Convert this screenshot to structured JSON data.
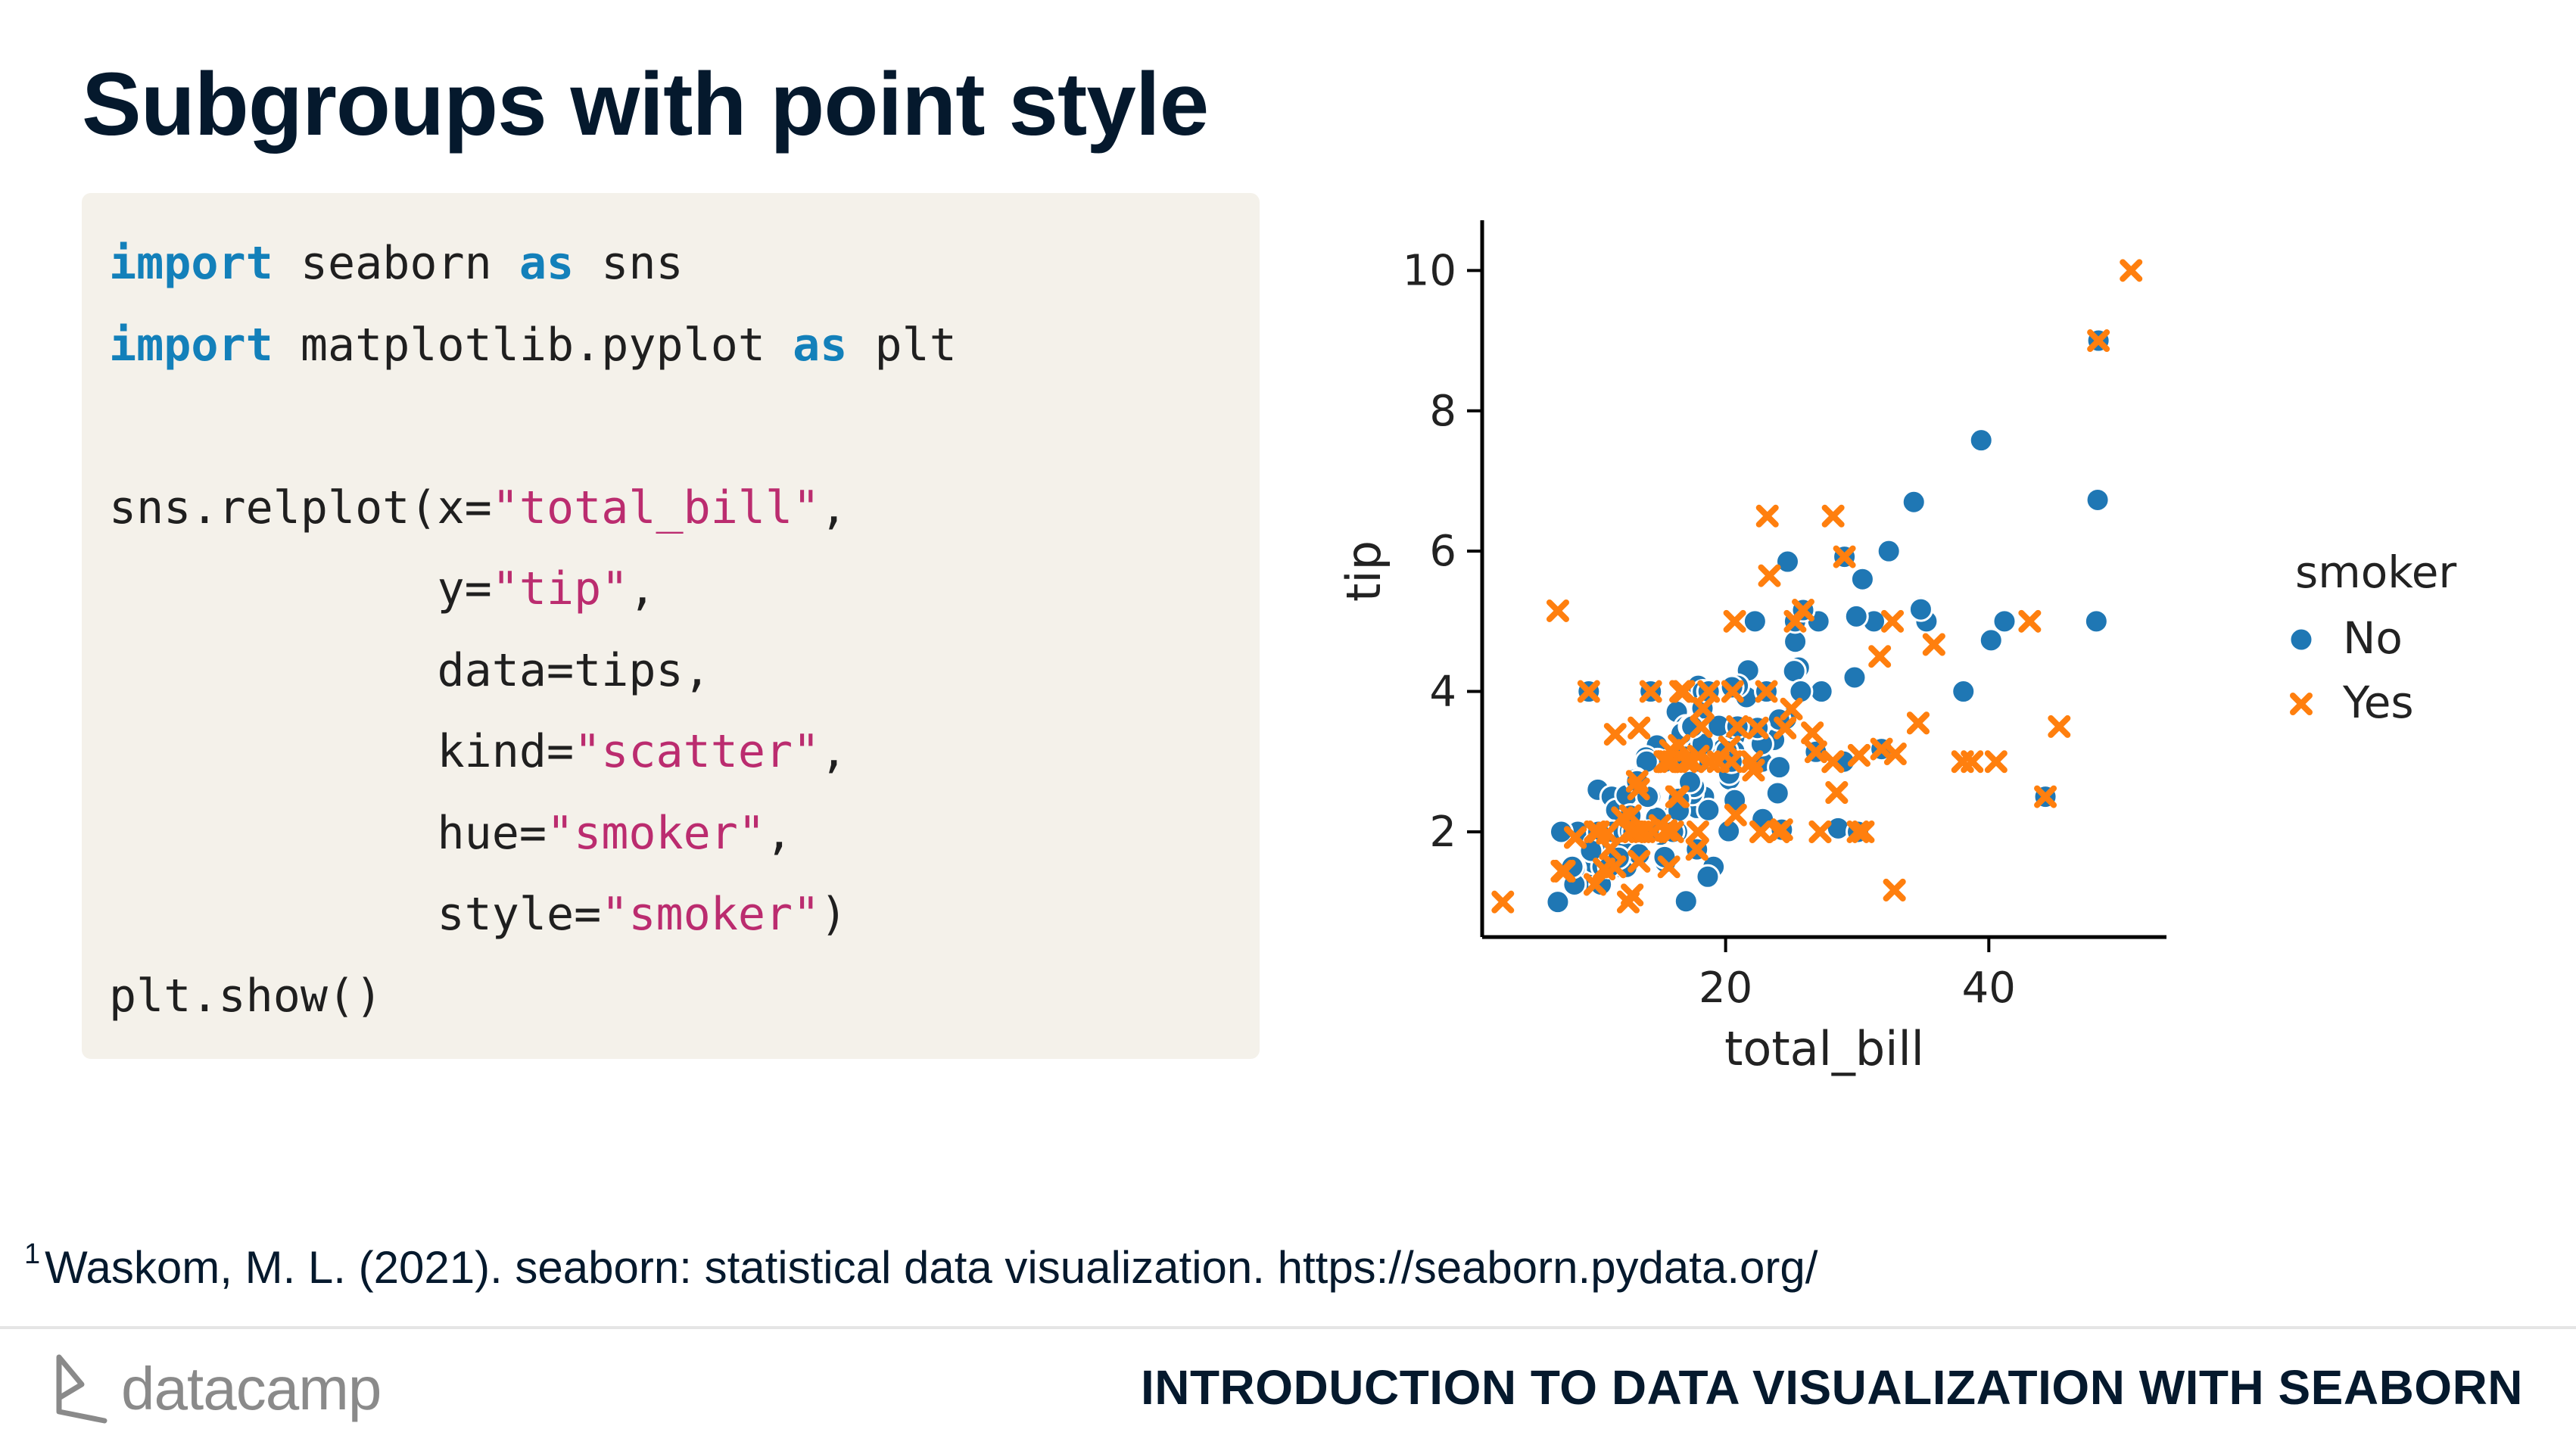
{
  "slide": {
    "title": "Subgroups with point style",
    "footnote_marker": "1",
    "footnote": "Waskom, M. L. (2021). seaborn: statistical data visualization. https://seaborn.pydata.org/",
    "brand": "datacamp",
    "course": "INTRODUCTION TO DATA VISUALIZATION WITH SEABORN"
  },
  "code": {
    "line1": {
      "kw1": "import",
      "t1": " seaborn ",
      "kw2": "as",
      "t2": " sns"
    },
    "line2": {
      "kw1": "import",
      "t1": " matplotlib.pyplot ",
      "kw2": "as",
      "t2": " plt"
    },
    "line4": {
      "t1": "sns.relplot(x=",
      "s1": "\"total_bill\"",
      "t2": ","
    },
    "line5": {
      "t1": "            y=",
      "s1": "\"tip\"",
      "t2": ","
    },
    "line6": {
      "t1": "            data=tips,"
    },
    "line7": {
      "t1": "            kind=",
      "s1": "\"scatter\"",
      "t2": ","
    },
    "line8": {
      "t1": "            hue=",
      "s1": "\"smoker\"",
      "t2": ","
    },
    "line9": {
      "t1": "            style=",
      "s1": "\"smoker\"",
      "t2": ")"
    },
    "line10": {
      "t1": "plt.show()"
    }
  },
  "colors": {
    "no": "#1f77b4",
    "yes": "#ff7f0e",
    "code_bg": "#f4f1ea",
    "keyword": "#1380ba",
    "string": "#bb2c6f"
  },
  "chart_data": {
    "type": "scatter",
    "xlabel": "total_bill",
    "ylabel": "tip",
    "xticks": [
      "20",
      "40"
    ],
    "yticks": [
      "2",
      "4",
      "6",
      "8",
      "10"
    ],
    "xlim": [
      1.5,
      53.5
    ],
    "ylim": [
      0.5,
      10.5
    ],
    "legend_title": "smoker",
    "legend_position": "right",
    "series": [
      {
        "name": "No",
        "marker": "circle",
        "points": [
          [
            16.99,
            1.01
          ],
          [
            10.34,
            1.66
          ],
          [
            21.01,
            3.5
          ],
          [
            23.68,
            3.31
          ],
          [
            24.59,
            3.61
          ],
          [
            25.29,
            4.71
          ],
          [
            8.77,
            2.0
          ],
          [
            26.88,
            3.12
          ],
          [
            15.04,
            1.96
          ],
          [
            14.78,
            3.23
          ],
          [
            10.27,
            1.71
          ],
          [
            35.26,
            5.0
          ],
          [
            15.42,
            1.57
          ],
          [
            18.43,
            3.0
          ],
          [
            14.83,
            3.02
          ],
          [
            21.58,
            3.92
          ],
          [
            10.33,
            1.67
          ],
          [
            16.29,
            3.71
          ],
          [
            16.97,
            3.5
          ],
          [
            20.65,
            3.35
          ],
          [
            17.92,
            4.08
          ],
          [
            20.29,
            2.75
          ],
          [
            15.77,
            2.23
          ],
          [
            39.42,
            7.58
          ],
          [
            19.82,
            3.18
          ],
          [
            17.81,
            2.34
          ],
          [
            13.37,
            2.0
          ],
          [
            12.69,
            2.0
          ],
          [
            21.7,
            4.3
          ],
          [
            19.65,
            3.0
          ],
          [
            9.55,
            1.45
          ],
          [
            18.35,
            2.5
          ],
          [
            15.06,
            3.0
          ],
          [
            20.69,
            2.45
          ],
          [
            17.78,
            3.27
          ],
          [
            24.06,
            3.6
          ],
          [
            16.31,
            2.0
          ],
          [
            16.93,
            3.07
          ],
          [
            18.69,
            2.31
          ],
          [
            31.27,
            5.0
          ],
          [
            16.04,
            2.24
          ],
          [
            17.46,
            2.54
          ],
          [
            13.94,
            3.06
          ],
          [
            9.68,
            1.32
          ],
          [
            30.4,
            5.6
          ],
          [
            18.29,
            3.0
          ],
          [
            22.23,
            5.0
          ],
          [
            32.4,
            6.0
          ],
          [
            28.55,
            2.05
          ],
          [
            18.04,
            3.0
          ],
          [
            12.54,
            2.5
          ],
          [
            10.29,
            2.6
          ],
          [
            34.81,
            5.2
          ],
          [
            9.94,
            1.56
          ],
          [
            25.56,
            4.34
          ],
          [
            19.49,
            3.51
          ],
          [
            48.27,
            6.73
          ],
          [
            20.65,
            3.15
          ],
          [
            13.81,
            2.0
          ],
          [
            11.02,
            1.98
          ],
          [
            18.26,
            3.76
          ],
          [
            17.59,
            2.64
          ],
          [
            20.08,
            3.15
          ],
          [
            16.45,
            2.47
          ],
          [
            20.23,
            2.01
          ],
          [
            15.01,
            2.09
          ],
          [
            12.02,
            1.97
          ],
          [
            17.07,
            3.0
          ],
          [
            26.86,
            3.14
          ],
          [
            25.28,
            5.0
          ],
          [
            14.73,
            2.2
          ],
          [
            10.51,
            1.25
          ],
          [
            27.2,
            4.0
          ],
          [
            22.76,
            3.0
          ],
          [
            17.29,
            2.71
          ],
          [
            16.66,
            3.4
          ],
          [
            10.07,
            1.83
          ],
          [
            34.83,
            5.17
          ],
          [
            13.03,
            2.0
          ],
          [
            18.28,
            4.0
          ],
          [
            24.71,
            5.85
          ],
          [
            21.16,
            3.0
          ],
          [
            28.97,
            3.0
          ],
          [
            22.49,
            3.5
          ],
          [
            22.75,
            3.25
          ],
          [
            40.17,
            4.73
          ],
          [
            27.28,
            4.0
          ],
          [
            12.03,
            1.5
          ],
          [
            21.01,
            3.0
          ],
          [
            12.46,
            1.5
          ],
          [
            11.35,
            2.5
          ],
          [
            15.38,
            3.0
          ],
          [
            44.3,
            2.5
          ],
          [
            22.42,
            3.48
          ],
          [
            20.92,
            4.08
          ],
          [
            15.36,
            1.64
          ],
          [
            20.49,
            4.06
          ],
          [
            25.21,
            4.29
          ],
          [
            18.24,
            3.76
          ],
          [
            14.31,
            4.0
          ],
          [
            14.0,
            3.0
          ],
          [
            7.25,
            1.0
          ],
          [
            38.07,
            4.0
          ],
          [
            23.95,
            2.55
          ],
          [
            25.71,
            4.0
          ],
          [
            17.31,
            3.5
          ],
          [
            29.93,
            5.07
          ],
          [
            10.65,
            1.5
          ],
          [
            12.43,
            1.8
          ],
          [
            24.08,
            2.92
          ],
          [
            11.69,
            2.31
          ],
          [
            13.42,
            1.68
          ],
          [
            14.26,
            2.5
          ],
          [
            15.95,
            2.0
          ],
          [
            12.48,
            2.52
          ],
          [
            29.8,
            4.2
          ],
          [
            8.52,
            1.48
          ],
          [
            14.52,
            2.0
          ],
          [
            11.38,
            2.0
          ],
          [
            22.82,
            2.18
          ],
          [
            19.08,
            1.5
          ],
          [
            20.27,
            2.83
          ],
          [
            11.17,
            1.5
          ],
          [
            12.26,
            2.0
          ],
          [
            18.26,
            3.25
          ],
          [
            8.51,
            1.25
          ],
          [
            10.33,
            2.0
          ],
          [
            14.15,
            2.0
          ],
          [
            13.16,
            2.75
          ],
          [
            17.47,
            3.5
          ],
          [
            34.3,
            6.7
          ],
          [
            41.19,
            5.0
          ],
          [
            27.05,
            5.0
          ],
          [
            16.43,
            2.3
          ],
          [
            8.35,
            1.5
          ],
          [
            18.64,
            1.36
          ],
          [
            11.87,
            1.63
          ],
          [
            9.78,
            1.73
          ],
          [
            7.51,
            2.0
          ],
          [
            48.33,
            9.0
          ],
          [
            13.51,
            2.0
          ],
          [
            18.71,
            4.0
          ],
          [
            12.74,
            2.01
          ],
          [
            20.9,
            3.5
          ],
          [
            16.0,
            2.0
          ],
          [
            48.17,
            5.0
          ],
          [
            13.0,
            2.0
          ],
          [
            14.07,
            2.5
          ],
          [
            24.27,
            2.03
          ],
          [
            12.76,
            2.23
          ],
          [
            31.85,
            3.18
          ],
          [
            30.06,
            2.0
          ],
          [
            25.89,
            5.16
          ],
          [
            23.1,
            4.0
          ],
          [
            29.03,
            5.92
          ],
          [
            17.82,
            1.75
          ],
          [
            9.6,
            4.0
          ],
          [
            20.45,
            3.0
          ],
          [
            13.28,
            2.72
          ]
        ]
      },
      {
        "name": "Yes",
        "marker": "x",
        "points": [
          [
            38.01,
            3.0
          ],
          [
            11.24,
            1.76
          ],
          [
            20.29,
            3.21
          ],
          [
            13.81,
            2.0
          ],
          [
            11.02,
            1.98
          ],
          [
            18.29,
            3.76
          ],
          [
            3.07,
            1.0
          ],
          [
            15.01,
            2.09
          ],
          [
            26.86,
            3.14
          ],
          [
            25.28,
            5.0
          ],
          [
            17.92,
            3.08
          ],
          [
            19.44,
            3.0
          ],
          [
            32.68,
            5.0
          ],
          [
            16.58,
            4.0
          ],
          [
            10.77,
            1.47
          ],
          [
            15.53,
            3.0
          ],
          [
            10.07,
            1.25
          ],
          [
            12.6,
            1.0
          ],
          [
            32.83,
            1.17
          ],
          [
            35.83,
            4.67
          ],
          [
            29.03,
            5.92
          ],
          [
            27.18,
            2.0
          ],
          [
            22.67,
            2.0
          ],
          [
            17.82,
            1.75
          ],
          [
            18.78,
            3.0
          ],
          [
            12.9,
            1.1
          ],
          [
            28.15,
            3.0
          ],
          [
            11.59,
            1.5
          ],
          [
            7.74,
            1.44
          ],
          [
            30.14,
            3.09
          ],
          [
            12.16,
            2.2
          ],
          [
            13.42,
            3.48
          ],
          [
            8.58,
            1.92
          ],
          [
            15.98,
            3.0
          ],
          [
            13.42,
            1.58
          ],
          [
            16.27,
            2.5
          ],
          [
            10.09,
            2.0
          ],
          [
            20.45,
            3.0
          ],
          [
            13.28,
            2.72
          ],
          [
            22.12,
            2.88
          ],
          [
            24.01,
            2.0
          ],
          [
            15.69,
            3.0
          ],
          [
            11.61,
            3.39
          ],
          [
            10.77,
            1.47
          ],
          [
            15.53,
            3.0
          ],
          [
            10.07,
            1.25
          ],
          [
            34.63,
            3.55
          ],
          [
            50.81,
            10.0
          ],
          [
            15.81,
            3.16
          ],
          [
            7.25,
            5.15
          ],
          [
            31.85,
            3.18
          ],
          [
            16.82,
            4.0
          ],
          [
            32.9,
            3.11
          ],
          [
            17.89,
            2.0
          ],
          [
            14.48,
            2.0
          ],
          [
            9.6,
            4.0
          ],
          [
            34.63,
            3.55
          ],
          [
            28.44,
            2.56
          ],
          [
            15.48,
            2.02
          ],
          [
            16.58,
            4.0
          ],
          [
            7.56,
            1.44
          ],
          [
            10.34,
            2.0
          ],
          [
            43.11,
            5.0
          ],
          [
            13.0,
            2.0
          ],
          [
            13.51,
            2.0
          ],
          [
            18.71,
            4.0
          ],
          [
            12.74,
            2.01
          ],
          [
            13.0,
            2.0
          ],
          [
            16.4,
            2.5
          ],
          [
            20.53,
            4.0
          ],
          [
            16.47,
            3.23
          ],
          [
            26.59,
            3.41
          ],
          [
            38.73,
            3.0
          ],
          [
            24.27,
            2.03
          ],
          [
            12.76,
            2.23
          ],
          [
            30.06,
            2.0
          ],
          [
            25.89,
            5.16
          ],
          [
            48.33,
            9.0
          ],
          [
            28.17,
            6.5
          ],
          [
            12.9,
            1.1
          ],
          [
            28.15,
            3.0
          ],
          [
            11.59,
            1.5
          ],
          [
            7.74,
            1.44
          ],
          [
            30.14,
            3.09
          ],
          [
            12.16,
            2.2
          ],
          [
            13.42,
            3.48
          ],
          [
            8.58,
            1.92
          ],
          [
            15.98,
            2.0
          ],
          [
            13.42,
            1.58
          ],
          [
            16.27,
            2.5
          ],
          [
            10.09,
            2.0
          ],
          [
            22.12,
            2.88
          ],
          [
            24.01,
            2.0
          ],
          [
            15.69,
            3.0
          ],
          [
            15.53,
            3.0
          ],
          [
            12.6,
            1.0
          ],
          [
            32.83,
            1.17
          ],
          [
            35.83,
            4.67
          ],
          [
            27.18,
            2.0
          ],
          [
            22.67,
            2.0
          ],
          [
            17.82,
            1.75
          ],
          [
            23.33,
            5.65
          ],
          [
            18.15,
            3.5
          ],
          [
            23.17,
            6.5
          ],
          [
            40.55,
            3.0
          ],
          [
            20.69,
            5.0
          ],
          [
            20.9,
            3.5
          ],
          [
            30.46,
            2.0
          ],
          [
            18.15,
            3.5
          ],
          [
            23.1,
            4.0
          ],
          [
            11.02,
            1.98
          ],
          [
            45.35,
            3.5
          ],
          [
            22.42,
            3.48
          ],
          [
            25.0,
            3.75
          ],
          [
            13.39,
            2.61
          ],
          [
            16.99,
            3.0
          ],
          [
            15.38,
            3.0
          ],
          [
            44.3,
            2.5
          ],
          [
            22.0,
            3.0
          ],
          [
            17.51,
            3.0
          ],
          [
            24.52,
            3.48
          ],
          [
            20.76,
            2.24
          ],
          [
            15.69,
            1.5
          ],
          [
            14.31,
            4.0
          ],
          [
            8.58,
            1.92
          ],
          [
            31.71,
            4.5
          ],
          [
            16.82,
            4.0
          ],
          [
            24.52,
            3.48
          ],
          [
            26.59,
            3.41
          ],
          [
            28.44,
            2.56
          ]
        ]
      }
    ]
  }
}
